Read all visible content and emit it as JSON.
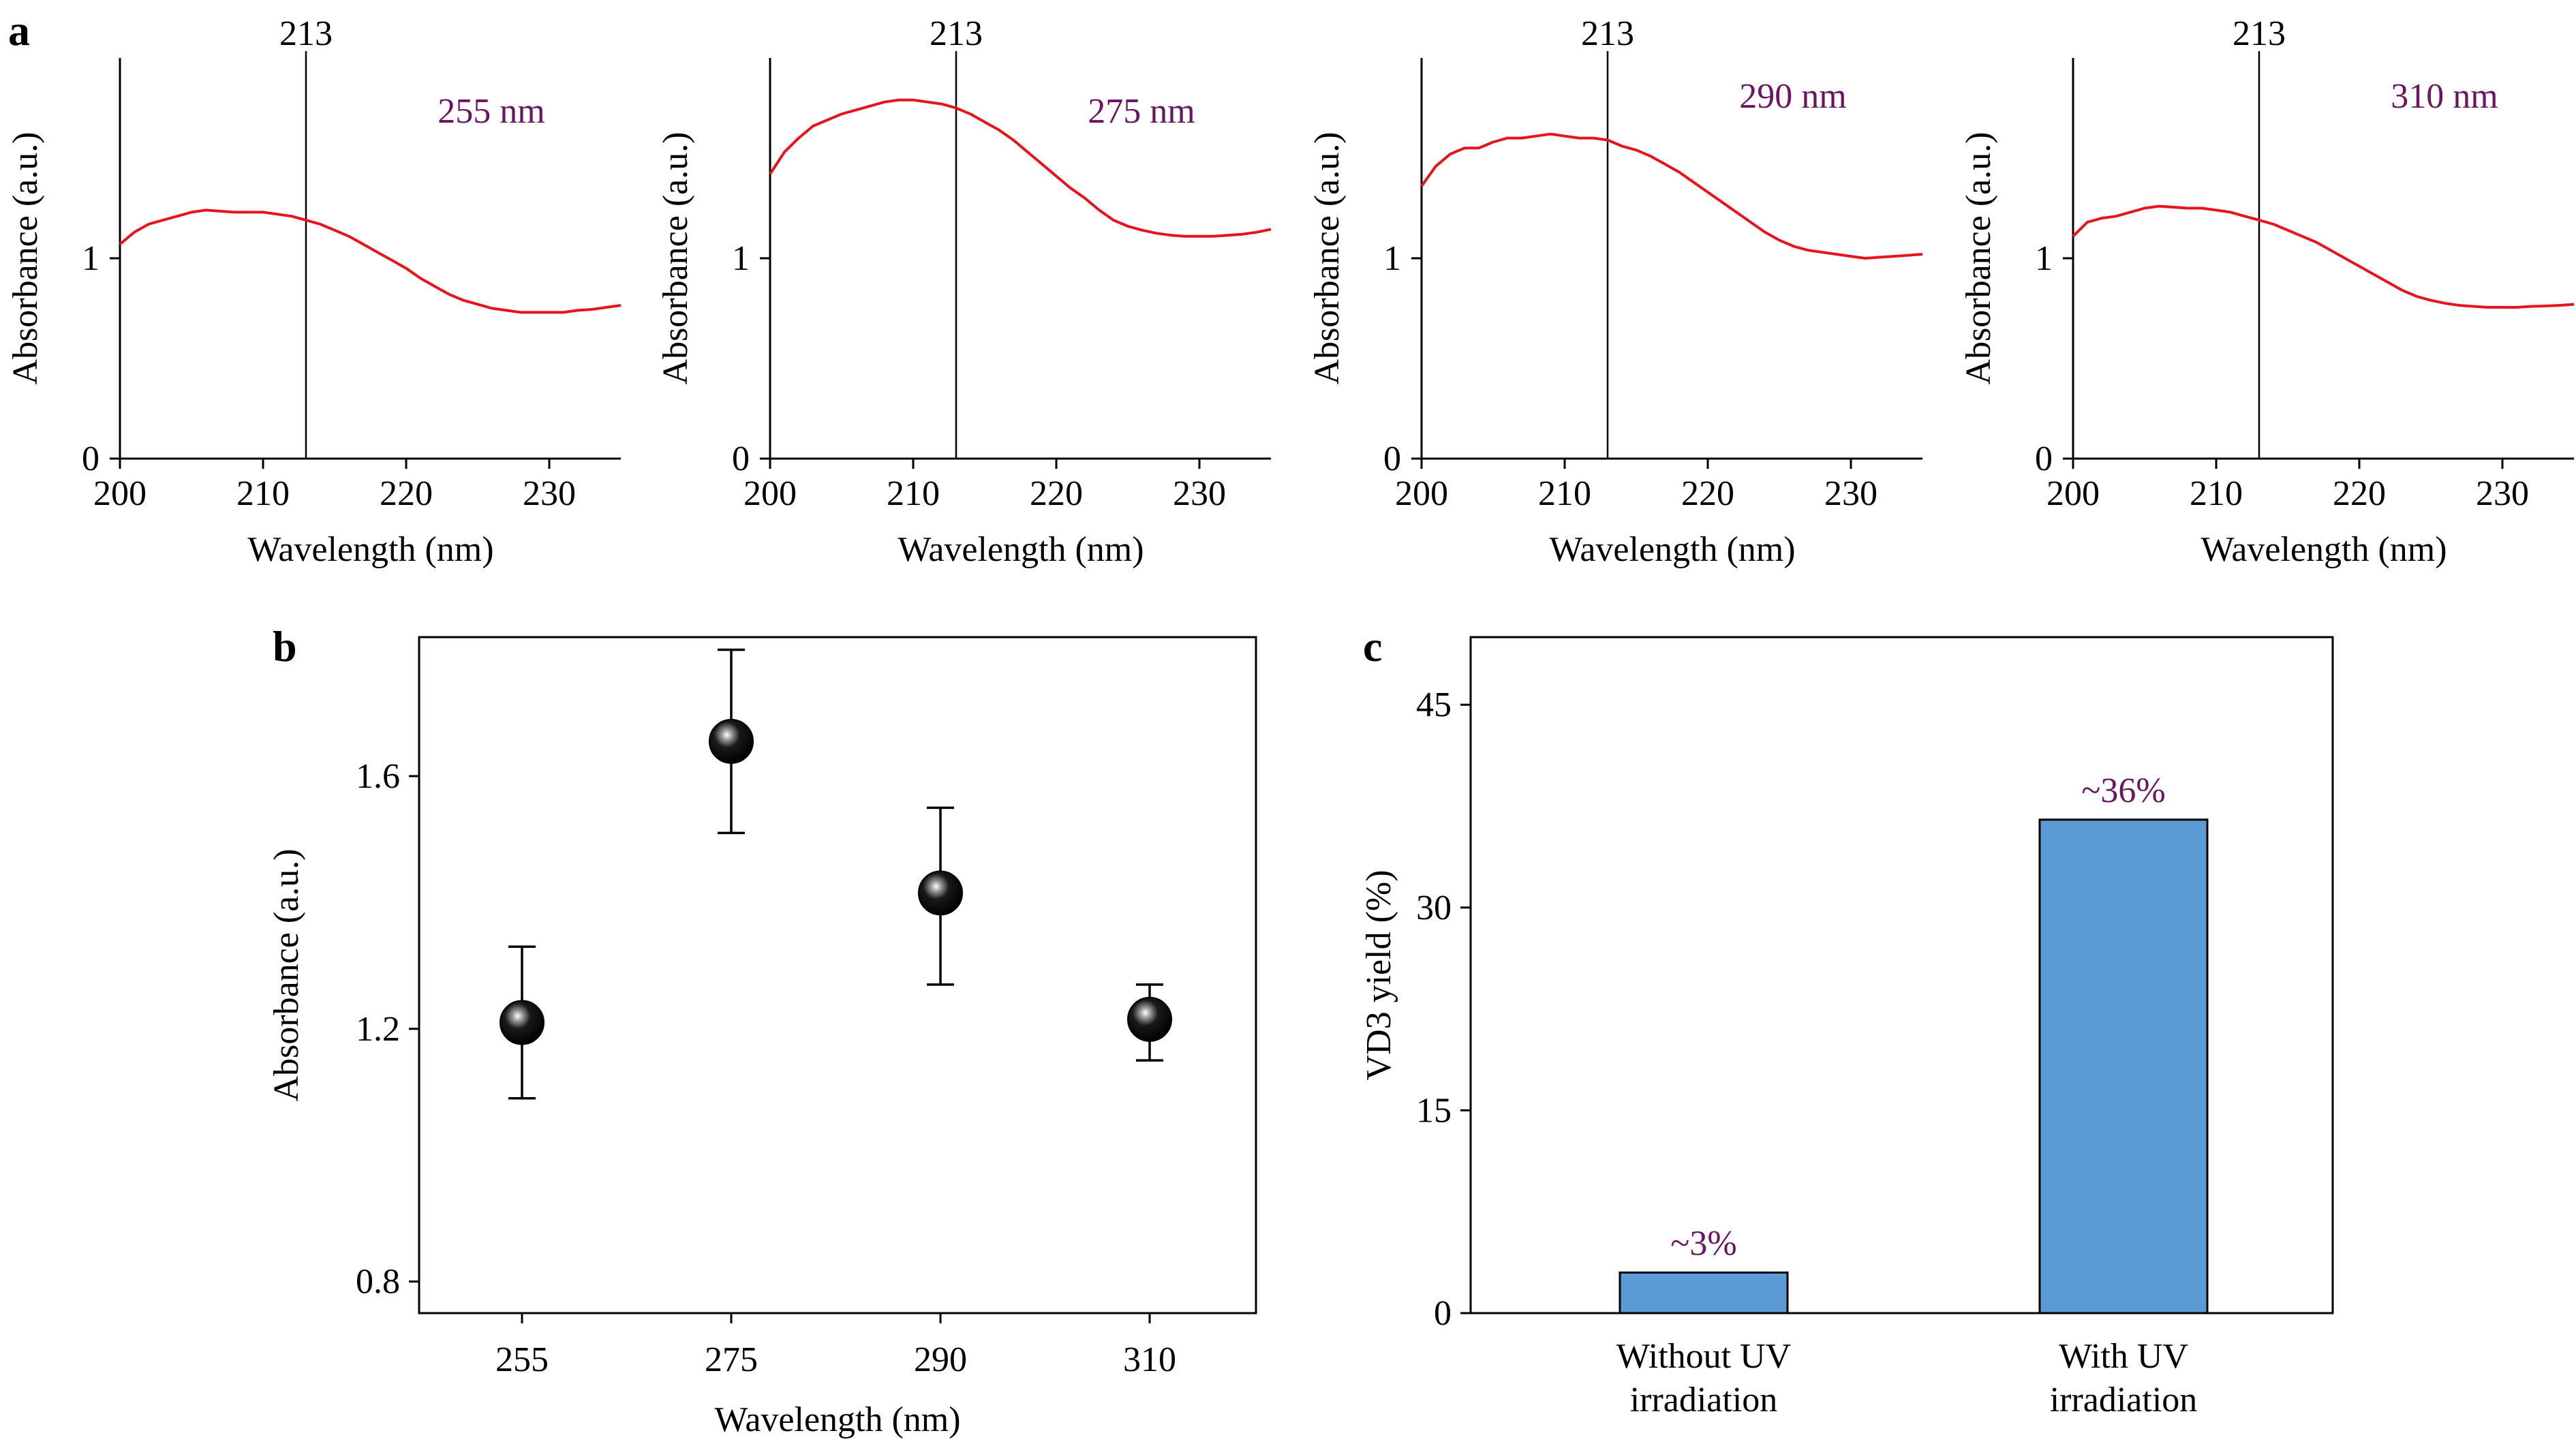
{
  "colors": {
    "spectrum_line": "#e8141c",
    "marker_line": "#000000",
    "wavelength_annotation": "#6b1464",
    "bar_fill": "#5b9bd5",
    "bar_label": "#6b1464",
    "axis": "#000000"
  },
  "chart_data": [
    {
      "type": "line",
      "panel_label": "a",
      "xlabel": "Wavelength (nm)",
      "ylabel": "Absorbance (a.u.)",
      "xlim": [
        200,
        235
      ],
      "ylim": [
        0,
        2
      ],
      "xticks": [
        200,
        210,
        220,
        230
      ],
      "yticks": [
        0,
        1
      ],
      "marker_value": 213,
      "marker_label": "213",
      "annotation": "255 nm",
      "series": [
        {
          "x": [
            200,
            201,
            202,
            203,
            204,
            205,
            206,
            207,
            208,
            209,
            210,
            211,
            212,
            213,
            214,
            215,
            216,
            217,
            218,
            219,
            220,
            221,
            222,
            223,
            224,
            225,
            226,
            227,
            228,
            229,
            230,
            231,
            232,
            233,
            234,
            235
          ],
          "y": [
            1.07,
            1.13,
            1.17,
            1.19,
            1.21,
            1.23,
            1.24,
            1.235,
            1.23,
            1.23,
            1.23,
            1.22,
            1.21,
            1.19,
            1.17,
            1.14,
            1.11,
            1.07,
            1.03,
            0.99,
            0.95,
            0.9,
            0.86,
            0.82,
            0.79,
            0.77,
            0.75,
            0.74,
            0.73,
            0.73,
            0.73,
            0.73,
            0.74,
            0.745,
            0.755,
            0.765
          ]
        }
      ]
    },
    {
      "type": "line",
      "panel_label": "",
      "xlabel": "Wavelength (nm)",
      "ylabel": "Absorbance (a.u.)",
      "xlim": [
        200,
        235
      ],
      "ylim": [
        0,
        2
      ],
      "xticks": [
        200,
        210,
        220,
        230
      ],
      "yticks": [
        0,
        1
      ],
      "marker_value": 213,
      "marker_label": "213",
      "annotation": "275 nm",
      "series": [
        {
          "x": [
            200,
            201,
            202,
            203,
            204,
            205,
            206,
            207,
            208,
            209,
            210,
            211,
            212,
            213,
            214,
            215,
            216,
            217,
            218,
            219,
            220,
            221,
            222,
            223,
            224,
            225,
            226,
            227,
            228,
            229,
            230,
            231,
            232,
            233,
            234,
            235
          ],
          "y": [
            1.42,
            1.53,
            1.6,
            1.66,
            1.69,
            1.72,
            1.74,
            1.76,
            1.78,
            1.79,
            1.79,
            1.78,
            1.77,
            1.75,
            1.72,
            1.68,
            1.64,
            1.59,
            1.53,
            1.47,
            1.41,
            1.35,
            1.3,
            1.24,
            1.19,
            1.16,
            1.14,
            1.125,
            1.115,
            1.11,
            1.11,
            1.11,
            1.115,
            1.12,
            1.13,
            1.145
          ]
        }
      ]
    },
    {
      "type": "line",
      "panel_label": "",
      "xlabel": "Wavelength (nm)",
      "ylabel": "Absorbance (a.u.)",
      "xlim": [
        200,
        235
      ],
      "ylim": [
        0,
        2
      ],
      "xticks": [
        200,
        210,
        220,
        230
      ],
      "yticks": [
        0,
        1
      ],
      "marker_value": 213,
      "marker_label": "213",
      "annotation": "290 nm",
      "series": [
        {
          "x": [
            200,
            201,
            202,
            203,
            204,
            205,
            206,
            207,
            208,
            209,
            210,
            211,
            212,
            213,
            214,
            215,
            216,
            217,
            218,
            219,
            220,
            221,
            222,
            223,
            224,
            225,
            226,
            227,
            228,
            229,
            230,
            231,
            232,
            233,
            234,
            235
          ],
          "y": [
            1.36,
            1.46,
            1.52,
            1.55,
            1.55,
            1.58,
            1.6,
            1.6,
            1.61,
            1.62,
            1.61,
            1.6,
            1.6,
            1.59,
            1.56,
            1.54,
            1.51,
            1.47,
            1.43,
            1.38,
            1.33,
            1.28,
            1.23,
            1.18,
            1.13,
            1.09,
            1.06,
            1.04,
            1.03,
            1.02,
            1.01,
            1.0,
            1.005,
            1.01,
            1.015,
            1.02
          ]
        }
      ]
    },
    {
      "type": "line",
      "panel_label": "",
      "xlabel": "Wavelength (nm)",
      "ylabel": "Absorbance (a.u.)",
      "xlim": [
        200,
        235
      ],
      "ylim": [
        0,
        2
      ],
      "xticks": [
        200,
        210,
        220,
        230
      ],
      "yticks": [
        0,
        1
      ],
      "marker_value": 213,
      "marker_label": "213",
      "annotation": "310 nm",
      "series": [
        {
          "x": [
            200,
            201,
            202,
            203,
            204,
            205,
            206,
            207,
            208,
            209,
            210,
            211,
            212,
            213,
            214,
            215,
            216,
            217,
            218,
            219,
            220,
            221,
            222,
            223,
            224,
            225,
            226,
            227,
            228,
            229,
            230,
            231,
            232,
            233,
            234,
            235
          ],
          "y": [
            1.11,
            1.18,
            1.2,
            1.21,
            1.23,
            1.25,
            1.26,
            1.255,
            1.25,
            1.25,
            1.24,
            1.23,
            1.21,
            1.19,
            1.17,
            1.14,
            1.11,
            1.08,
            1.04,
            1.0,
            0.96,
            0.92,
            0.88,
            0.84,
            0.81,
            0.79,
            0.775,
            0.765,
            0.76,
            0.755,
            0.755,
            0.755,
            0.76,
            0.762,
            0.765,
            0.77
          ]
        }
      ]
    },
    {
      "type": "scatter",
      "panel_label": "b",
      "xlabel": "Wavelength (nm)",
      "ylabel": "Absorbance (a.u.)",
      "categories": [
        "255",
        "275",
        "290",
        "310"
      ],
      "values": [
        1.21,
        1.655,
        1.415,
        1.215
      ],
      "error_low": [
        1.09,
        1.51,
        1.27,
        1.15
      ],
      "error_high": [
        1.33,
        1.8,
        1.55,
        1.27
      ],
      "ylim": [
        0.75,
        1.82
      ],
      "yticks": [
        0.8,
        1.2,
        1.6
      ]
    },
    {
      "type": "bar",
      "panel_label": "c",
      "xlabel": "",
      "ylabel": "VD3 yield (%)",
      "categories": [
        [
          "Without UV",
          "irradiation"
        ],
        [
          "With UV",
          "irradiation"
        ]
      ],
      "values": [
        3,
        36.5
      ],
      "data_labels": [
        "~3%",
        "~36%"
      ],
      "ylim": [
        0,
        50
      ],
      "yticks": [
        0,
        15,
        30,
        45
      ]
    }
  ]
}
